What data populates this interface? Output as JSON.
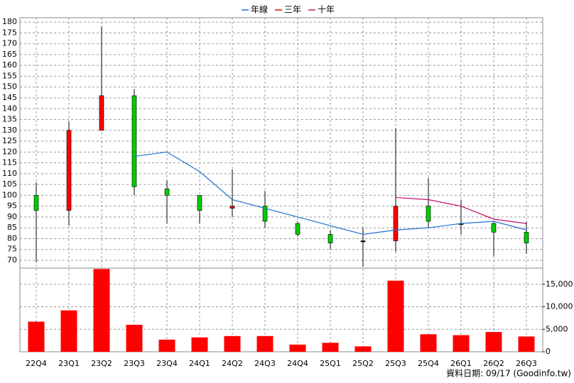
{
  "chart_data": {
    "type": "candlestick",
    "categories": [
      "22Q4",
      "23Q1",
      "23Q2",
      "23Q3",
      "23Q4",
      "24Q1",
      "24Q2",
      "24Q3",
      "24Q4",
      "25Q1",
      "25Q2",
      "25Q3",
      "25Q4",
      "26Q1",
      "26Q2",
      "26Q3"
    ],
    "open": [
      100,
      93,
      130,
      146,
      103,
      100,
      94,
      95,
      87,
      82,
      79,
      79,
      95,
      87,
      87,
      83
    ],
    "high": [
      106,
      134,
      178,
      149,
      107,
      100,
      112,
      102,
      88,
      84,
      85,
      131,
      108,
      98,
      88,
      88
    ],
    "low": [
      69,
      86,
      130,
      100,
      87,
      87,
      90,
      85,
      81,
      75,
      67,
      74,
      85,
      82,
      72,
      73
    ],
    "close": [
      93,
      130,
      146,
      104,
      100,
      93,
      95,
      88,
      82,
      78,
      79,
      95,
      88,
      87,
      83,
      78
    ],
    "up_color": "#ff0000",
    "down_color": "#00cc00",
    "flat_color": "#000000",
    "series": [
      {
        "name": "年線",
        "color": "#1f6fd1",
        "values": [
          null,
          null,
          null,
          118,
          120,
          111,
          98,
          94,
          90,
          86,
          82,
          84,
          85,
          87,
          88,
          84
        ]
      },
      {
        "name": "三年",
        "color": "#e00000",
        "values": [
          null,
          null,
          null,
          null,
          null,
          null,
          null,
          null,
          null,
          null,
          null,
          null,
          null,
          null,
          null,
          null
        ]
      },
      {
        "name": "十年",
        "color": "#c0106a",
        "values": [
          null,
          null,
          null,
          null,
          null,
          null,
          null,
          null,
          null,
          null,
          null,
          99,
          98,
          95,
          89,
          87
        ]
      }
    ],
    "ylim": [
      66.4,
      182
    ],
    "yticks": [
      70,
      75,
      80,
      85,
      90,
      95,
      100,
      105,
      110,
      115,
      120,
      125,
      130,
      135,
      140,
      145,
      150,
      155,
      160,
      165,
      170,
      175,
      180
    ],
    "grid": true,
    "legend": "top",
    "volume": {
      "color": "#ff0000",
      "values": [
        6700,
        9200,
        18400,
        6000,
        2700,
        3200,
        3500,
        3500,
        1600,
        2000,
        1200,
        15800,
        3900,
        3700,
        4400,
        3400
      ],
      "ylim": [
        0,
        18600
      ],
      "yticks": [
        0,
        {
          "value": 5000,
          "label": "5,000"
        },
        {
          "value": 10000,
          "label": "10,000"
        },
        {
          "value": 15000,
          "label": "15,000"
        }
      ]
    },
    "source": "資料日期: 09/17 (Goodinfo.tw)"
  }
}
